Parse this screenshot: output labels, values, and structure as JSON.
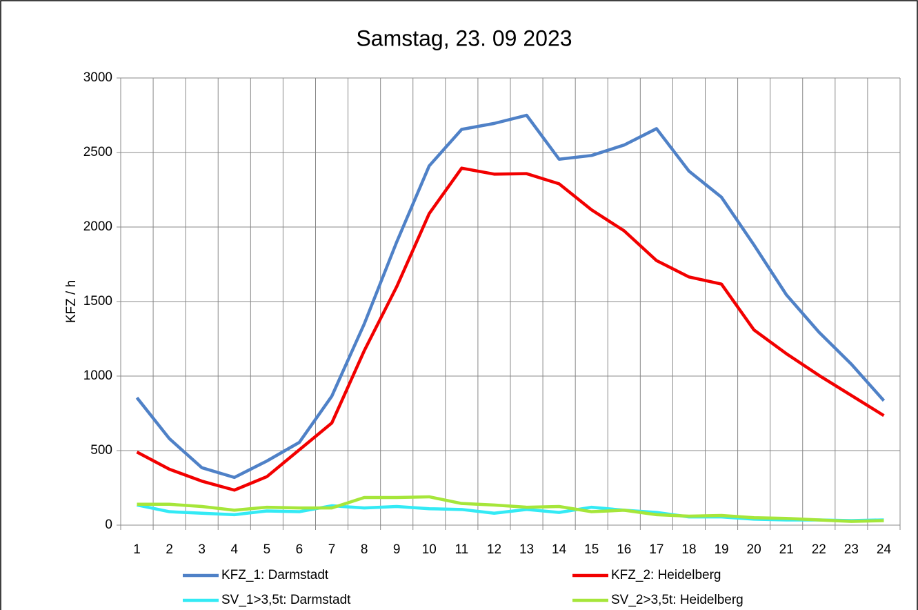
{
  "chart_data": {
    "type": "line",
    "title": "Samstag, 23. 09 2023",
    "y_label": "KFZ / h",
    "categories": [
      "1",
      "2",
      "3",
      "4",
      "5",
      "6",
      "7",
      "8",
      "9",
      "10",
      "11",
      "12",
      "13",
      "14",
      "15",
      "16",
      "17",
      "18",
      "19",
      "20",
      "21",
      "22",
      "23",
      "24"
    ],
    "series": [
      {
        "name": "KFZ_1: Darmstadt",
        "color": "#4f81c7",
        "values": [
          855,
          580,
          385,
          320,
          430,
          555,
          865,
          1350,
          1900,
          2410,
          2655,
          2695,
          2750,
          2455,
          2480,
          2550,
          2660,
          2375,
          2200,
          1880,
          1545,
          1295,
          1080,
          835
        ]
      },
      {
        "name": "KFZ_2: Heidelberg",
        "color": "#f20000",
        "values": [
          490,
          375,
          295,
          235,
          325,
          505,
          685,
          1170,
          1600,
          2090,
          2395,
          2355,
          2358,
          2290,
          2115,
          1975,
          1775,
          1665,
          1617,
          1310,
          1150,
          1005,
          870,
          735
        ]
      },
      {
        "name": "SV_1>3,5t: Darmstadt",
        "color": "#33eaf5",
        "values": [
          135,
          90,
          80,
          70,
          95,
          90,
          130,
          115,
          125,
          110,
          105,
          80,
          105,
          85,
          120,
          100,
          85,
          55,
          55,
          40,
          35,
          35,
          30,
          35
        ]
      },
      {
        "name": "SV_2>3,5t: Heidelberg",
        "color": "#a6e63a",
        "values": [
          140,
          140,
          125,
          100,
          120,
          115,
          115,
          185,
          185,
          190,
          145,
          135,
          120,
          125,
          90,
          100,
          70,
          60,
          65,
          50,
          45,
          35,
          25,
          30
        ]
      }
    ],
    "ylim": [
      0,
      3000
    ],
    "yticks": [
      0,
      500,
      1000,
      1500,
      2000,
      2500,
      3000
    ],
    "grid": true,
    "legend": "bottom"
  }
}
